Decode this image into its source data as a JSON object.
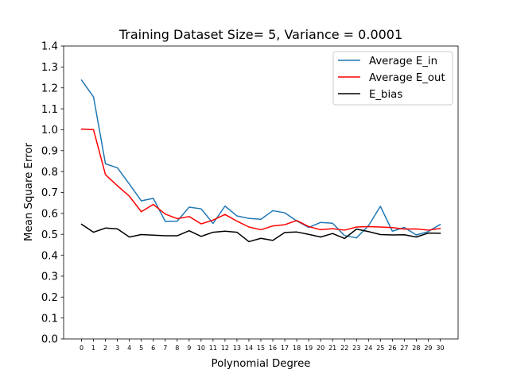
{
  "chart_data": {
    "type": "line",
    "title": "Training Dataset Size= 5, Variance = 0.0001",
    "xlabel": "Polynomial Degree",
    "ylabel": "Mean Square Error",
    "x": [
      0,
      1,
      2,
      3,
      4,
      5,
      6,
      7,
      8,
      9,
      10,
      11,
      12,
      13,
      14,
      15,
      16,
      17,
      18,
      19,
      20,
      21,
      22,
      23,
      24,
      25,
      26,
      27,
      28,
      29,
      30
    ],
    "xticks": [
      "0",
      "1",
      "2",
      "3",
      "4",
      "5",
      "6",
      "7",
      "8",
      "9",
      "10",
      "11",
      "12",
      "13",
      "14",
      "15",
      "16",
      "17",
      "18",
      "19",
      "20",
      "21",
      "22",
      "23",
      "24",
      "25",
      "26",
      "27",
      "28",
      "29",
      "30"
    ],
    "xlim": [
      -1.5,
      31.5
    ],
    "ylim": [
      0.0,
      1.4
    ],
    "yticks": [
      "0.0",
      "0.1",
      "0.2",
      "0.3",
      "0.4",
      "0.5",
      "0.6",
      "0.7",
      "0.8",
      "0.9",
      "1.0",
      "1.1",
      "1.2",
      "1.3",
      "1.4"
    ],
    "grid": false,
    "legend_position": "top-right",
    "series": [
      {
        "name": "Average E_in",
        "color": "#1f77b4",
        "values": [
          1.237,
          1.157,
          0.837,
          0.818,
          0.74,
          0.66,
          0.672,
          0.562,
          0.563,
          0.63,
          0.622,
          0.552,
          0.635,
          0.588,
          0.576,
          0.572,
          0.613,
          0.603,
          0.564,
          0.533,
          0.557,
          0.553,
          0.494,
          0.483,
          0.541,
          0.634,
          0.515,
          0.533,
          0.497,
          0.513,
          0.547
        ]
      },
      {
        "name": "Average E_out",
        "color": "#ff0000",
        "values": [
          1.003,
          1.0,
          0.785,
          0.732,
          0.682,
          0.608,
          0.643,
          0.597,
          0.575,
          0.585,
          0.55,
          0.568,
          0.595,
          0.563,
          0.535,
          0.522,
          0.54,
          0.546,
          0.566,
          0.537,
          0.522,
          0.527,
          0.52,
          0.535,
          0.537,
          0.535,
          0.532,
          0.525,
          0.526,
          0.52,
          0.528
        ]
      },
      {
        "name": "E_bias",
        "color": "#000000",
        "values": [
          0.548,
          0.51,
          0.53,
          0.526,
          0.487,
          0.499,
          0.496,
          0.493,
          0.493,
          0.517,
          0.49,
          0.51,
          0.515,
          0.51,
          0.465,
          0.481,
          0.471,
          0.509,
          0.511,
          0.5,
          0.487,
          0.504,
          0.48,
          0.525,
          0.513,
          0.499,
          0.497,
          0.498,
          0.487,
          0.506,
          0.505
        ]
      }
    ]
  }
}
